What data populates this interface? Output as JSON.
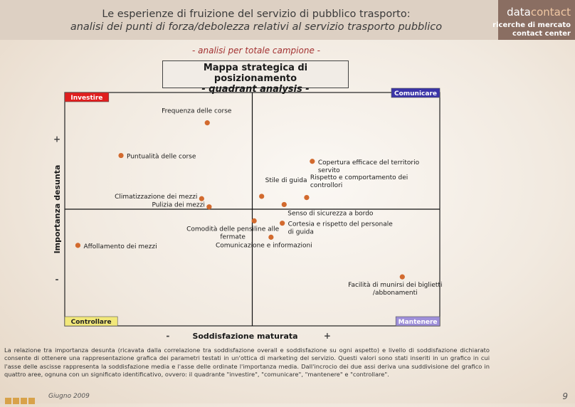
{
  "header": {
    "title_line1": "Le esperienze di fruizione del servizio di pubblico trasporto:",
    "title_line2": "analisi dei punti di forza/debolezza relativi al servizio trasporto pubblico"
  },
  "logo": {
    "brand_part1": "data",
    "brand_part2": "contact",
    "line1": "ricerche di mercato",
    "line2": "contact center"
  },
  "subtitle": "- analisi per totale campione -",
  "chart_title": {
    "line1": "Mappa strategica di posizionamento",
    "line2": "- quadrant analysis -"
  },
  "quadrants": {
    "top_left": {
      "label": "Investire",
      "color": "#e01e1e",
      "text_color": "#ffffff"
    },
    "top_right": {
      "label": "Comunicare",
      "color": "#3b34a8",
      "text_color": "#ffffff"
    },
    "bottom_left": {
      "label": "Controllare",
      "color": "#f2e87a",
      "text_color": "#222222"
    },
    "bottom_right": {
      "label": "Mantenere",
      "color": "#9e8fd9",
      "text_color": "#ffffff"
    }
  },
  "axes": {
    "y_label": "Importanza desunta",
    "x_label": "Soddisfazione maturata",
    "y_plus": "+",
    "y_minus": "-",
    "x_plus": "+",
    "x_minus": "-"
  },
  "chart_data": {
    "type": "scatter",
    "title": "Mappa strategica di posizionamento",
    "subtitle": "- quadrant analysis -",
    "xlabel": "Soddisfazione maturata",
    "ylabel": "Importanza desunta",
    "xlim": [
      -1,
      1
    ],
    "ylim": [
      -1,
      1
    ],
    "point_color": "#d26a2e",
    "points": [
      {
        "label": "Frequenza delle corse",
        "x": -0.24,
        "y": 0.74,
        "label_lines": [
          "Frequenza delle corse"
        ],
        "label_pos": "above"
      },
      {
        "label": "Puntualità delle corse",
        "x": -0.7,
        "y": 0.46,
        "label_lines": [
          "Puntualità delle corse"
        ],
        "label_pos": "right"
      },
      {
        "label": "Copertura efficace del territorio servito",
        "x": 0.32,
        "y": 0.41,
        "label_lines": [
          "Copertura efficace del territorio",
          "servito"
        ],
        "label_pos": "right"
      },
      {
        "label": "Stile di guida",
        "x": 0.05,
        "y": 0.11,
        "label_lines": [
          "Stile di guida"
        ],
        "label_pos": "above-right"
      },
      {
        "label": "Rispetto e comportamento dei controllori",
        "x": 0.29,
        "y": 0.1,
        "label_lines": [
          "Rispetto e comportamento dei",
          "controllori"
        ],
        "label_pos": "above-right"
      },
      {
        "label": "Climatizzazione dei mezzi",
        "x": -0.27,
        "y": 0.09,
        "label_lines": [
          "Climatizzazione dei mezzi"
        ],
        "label_pos": "left"
      },
      {
        "label": "Pulizia dei mezzi",
        "x": -0.23,
        "y": 0.02,
        "label_lines": [
          "Pulizia dei mezzi"
        ],
        "label_pos": "left"
      },
      {
        "label": "Senso di sicurezza a bordo",
        "x": 0.17,
        "y": 0.04,
        "label_lines": [
          "Senso di sicurezza a bordo"
        ],
        "label_pos": "below-right"
      },
      {
        "label": "Comodità delle pensiline alle fermate",
        "x": 0.01,
        "y": -0.1,
        "label_lines": [
          "Comodità delle pensiline alle",
          "fermate"
        ],
        "label_pos": "below-left"
      },
      {
        "label": "Cortesia e rispetto del personale di guida",
        "x": 0.16,
        "y": -0.12,
        "label_lines": [
          "Cortesia e rispetto del personale",
          "di guida"
        ],
        "label_pos": "right"
      },
      {
        "label": "Comunicazione e informazioni",
        "x": 0.1,
        "y": -0.24,
        "label_lines": [
          "Comunicazione e informazioni"
        ],
        "label_pos": "below"
      },
      {
        "label": "Affollamento dei mezzi",
        "x": -0.93,
        "y": -0.31,
        "label_lines": [
          "Affollamento dei mezzi"
        ],
        "label_pos": "right"
      },
      {
        "label": "Facilità di munirsi dei biglietti/abbonamenti",
        "x": 0.8,
        "y": -0.58,
        "label_lines": [
          "Facilità di munirsi dei biglietti",
          "/abbonamenti"
        ],
        "label_pos": "below"
      }
    ]
  },
  "body_text": "La relazione tra importanza desunta (ricavata dalla correlazione tra soddisfazione overall e soddisfazione su ogni aspetto) e livello di soddisfazione dichiarato consente di ottenere una rappresentazione grafica dei parametri testati in un'ottica di marketing del servizio. Questi valori sono stati inseriti in un grafico in cui l'asse delle ascisse rappresenta la soddisfazione media e l'asse delle ordinate l'importanza media. Dall'incrocio dei due assi deriva una suddivisione del grafico in quattro aree, ognuna con un significato identificativo, ovvero: il quadrante \"investire\", \"comunicare\", \"mantenere\" e \"controllare\".",
  "footer": {
    "date": "Giugno 2009",
    "page": "9"
  }
}
